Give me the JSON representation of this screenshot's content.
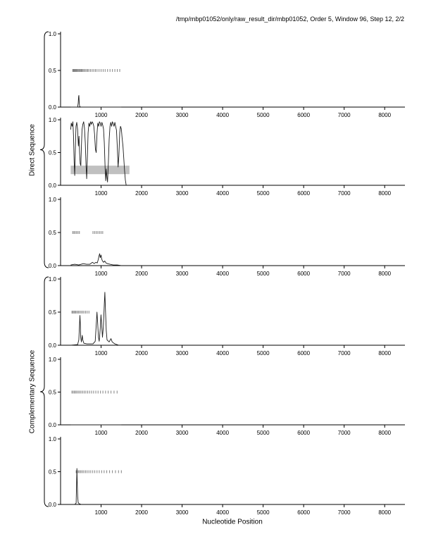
{
  "title": "/tmp/mbp01052/only/raw_result_dir/mbp01052, Order 5, Window 96, Step 12, 2/2",
  "xlabel": "Nucleotide Position",
  "group_labels": {
    "top": "Direct Sequence",
    "bottom": "Complementary Sequence"
  },
  "axis": {
    "x_min": 0,
    "x_max": 8500,
    "x_ticks": [
      1000,
      2000,
      3000,
      4000,
      5000,
      6000,
      7000,
      8000
    ],
    "y_ticks": [
      {
        "value": 0,
        "label": "0.0"
      },
      {
        "value": 0.5,
        "label": "0.5"
      },
      {
        "value": 1,
        "label": "1.0"
      }
    ]
  },
  "colors": {
    "line": "#1a1a1a",
    "marker": "#808080",
    "band": "#c0c0c0",
    "axis": "#000000"
  },
  "chart_data": [
    {
      "id": "direct-1",
      "group": "Direct Sequence",
      "type": "line",
      "ylim": [
        0,
        1
      ],
      "series": [
        [
          250,
          0.0
        ],
        [
          420,
          0.0
        ],
        [
          435,
          0.05
        ],
        [
          445,
          0.14
        ],
        [
          452,
          0.16
        ],
        [
          460,
          0.06
        ],
        [
          470,
          0.01
        ],
        [
          500,
          0.0
        ],
        [
          1500,
          0.0
        ]
      ],
      "marker_y": 0.5,
      "marker_x": [
        300,
        315,
        330,
        345,
        360,
        375,
        390,
        410,
        430,
        450,
        470,
        490,
        510,
        530,
        555,
        580,
        610,
        640,
        670,
        700,
        740,
        780,
        820,
        860,
        900,
        950,
        1000,
        1050,
        1100,
        1160,
        1220,
        1280,
        1340,
        1400,
        1460
      ],
      "band": null
    },
    {
      "id": "direct-2",
      "group": "Direct Sequence",
      "type": "line",
      "ylim": [
        0,
        1
      ],
      "series": [
        [
          250,
          0.85
        ],
        [
          265,
          0.95
        ],
        [
          285,
          0.9
        ],
        [
          305,
          0.97
        ],
        [
          320,
          0.75
        ],
        [
          335,
          0.35
        ],
        [
          350,
          0.15
        ],
        [
          365,
          0.55
        ],
        [
          380,
          0.9
        ],
        [
          400,
          0.96
        ],
        [
          420,
          0.85
        ],
        [
          440,
          0.6
        ],
        [
          455,
          0.75
        ],
        [
          470,
          0.5
        ],
        [
          485,
          0.33
        ],
        [
          500,
          0.3
        ],
        [
          515,
          0.6
        ],
        [
          530,
          0.85
        ],
        [
          550,
          0.93
        ],
        [
          570,
          0.97
        ],
        [
          590,
          0.88
        ],
        [
          610,
          0.65
        ],
        [
          630,
          0.3
        ],
        [
          645,
          0.1
        ],
        [
          660,
          0.4
        ],
        [
          680,
          0.8
        ],
        [
          700,
          0.95
        ],
        [
          720,
          0.9
        ],
        [
          740,
          0.97
        ],
        [
          760,
          0.93
        ],
        [
          780,
          0.97
        ],
        [
          800,
          0.95
        ],
        [
          820,
          0.9
        ],
        [
          840,
          0.78
        ],
        [
          860,
          0.55
        ],
        [
          880,
          0.5
        ],
        [
          900,
          0.8
        ],
        [
          920,
          0.95
        ],
        [
          940,
          0.9
        ],
        [
          960,
          0.97
        ],
        [
          980,
          0.95
        ],
        [
          1000,
          0.9
        ],
        [
          1020,
          0.96
        ],
        [
          1040,
          0.92
        ],
        [
          1060,
          0.86
        ],
        [
          1080,
          0.65
        ],
        [
          1100,
          0.25
        ],
        [
          1115,
          0.07
        ],
        [
          1130,
          0.25
        ],
        [
          1145,
          0.12
        ],
        [
          1160,
          0.05
        ],
        [
          1180,
          0.35
        ],
        [
          1200,
          0.7
        ],
        [
          1220,
          0.9
        ],
        [
          1240,
          0.96
        ],
        [
          1260,
          0.9
        ],
        [
          1280,
          0.97
        ],
        [
          1300,
          0.94
        ],
        [
          1320,
          0.9
        ],
        [
          1340,
          0.96
        ],
        [
          1360,
          0.9
        ],
        [
          1380,
          0.84
        ],
        [
          1400,
          0.6
        ],
        [
          1420,
          0.28
        ],
        [
          1440,
          0.45
        ],
        [
          1460,
          0.8
        ],
        [
          1480,
          0.9
        ],
        [
          1500,
          0.86
        ],
        [
          1520,
          0.72
        ],
        [
          1540,
          0.6
        ],
        [
          1560,
          0.42
        ],
        [
          1580,
          0.22
        ],
        [
          1600,
          0.08
        ],
        [
          1620,
          0.0
        ]
      ],
      "marker_y": null,
      "marker_x": [],
      "band": {
        "x0": 250,
        "x1": 1700,
        "y0": 0.17,
        "y1": 0.3
      }
    },
    {
      "id": "direct-3",
      "group": "Direct Sequence",
      "type": "line",
      "ylim": [
        0,
        1
      ],
      "series": [
        [
          250,
          0.01
        ],
        [
          350,
          0.02
        ],
        [
          450,
          0.01
        ],
        [
          560,
          0.03
        ],
        [
          640,
          0.02
        ],
        [
          720,
          0.02
        ],
        [
          790,
          0.05
        ],
        [
          830,
          0.03
        ],
        [
          870,
          0.05
        ],
        [
          905,
          0.04
        ],
        [
          930,
          0.09
        ],
        [
          950,
          0.15
        ],
        [
          965,
          0.18
        ],
        [
          980,
          0.12
        ],
        [
          1000,
          0.16
        ],
        [
          1015,
          0.1
        ],
        [
          1035,
          0.07
        ],
        [
          1060,
          0.05
        ],
        [
          1090,
          0.07
        ],
        [
          1120,
          0.04
        ],
        [
          1160,
          0.03
        ],
        [
          1220,
          0.02
        ],
        [
          1300,
          0.01
        ],
        [
          1400,
          0.01
        ],
        [
          1500,
          0.0
        ]
      ],
      "marker_y": 0.5,
      "marker_x": [
        300,
        330,
        360,
        395,
        430,
        465,
        800,
        840,
        880,
        920,
        960,
        1000,
        1040
      ],
      "band": null
    },
    {
      "id": "complementary-1",
      "group": "Complementary Sequence",
      "type": "line",
      "ylim": [
        0,
        1
      ],
      "series": [
        [
          250,
          0.0
        ],
        [
          420,
          0.01
        ],
        [
          450,
          0.08
        ],
        [
          468,
          0.3
        ],
        [
          478,
          0.45
        ],
        [
          488,
          0.32
        ],
        [
          498,
          0.12
        ],
        [
          515,
          0.05
        ],
        [
          535,
          0.15
        ],
        [
          550,
          0.08
        ],
        [
          575,
          0.03
        ],
        [
          650,
          0.02
        ],
        [
          800,
          0.02
        ],
        [
          855,
          0.06
        ],
        [
          880,
          0.3
        ],
        [
          898,
          0.5
        ],
        [
          915,
          0.35
        ],
        [
          935,
          0.12
        ],
        [
          955,
          0.06
        ],
        [
          978,
          0.25
        ],
        [
          998,
          0.46
        ],
        [
          1015,
          0.3
        ],
        [
          1035,
          0.12
        ],
        [
          1058,
          0.3
        ],
        [
          1080,
          0.62
        ],
        [
          1093,
          0.8
        ],
        [
          1108,
          0.55
        ],
        [
          1128,
          0.22
        ],
        [
          1148,
          0.08
        ],
        [
          1200,
          0.05
        ],
        [
          1245,
          0.1
        ],
        [
          1275,
          0.05
        ],
        [
          1340,
          0.02
        ],
        [
          1440,
          0.0
        ]
      ],
      "marker_y": 0.5,
      "marker_x": [
        280,
        305,
        330,
        355,
        380,
        410,
        440,
        470,
        505,
        540,
        575,
        615,
        655,
        700
      ],
      "band": null
    },
    {
      "id": "complementary-2",
      "group": "Complementary Sequence",
      "type": "line",
      "ylim": [
        0,
        1
      ],
      "series": [
        [
          250,
          0.0
        ],
        [
          1500,
          0.0
        ]
      ],
      "marker_y": 0.5,
      "marker_x": [
        280,
        310,
        340,
        370,
        400,
        435,
        470,
        505,
        545,
        585,
        625,
        670,
        715,
        765,
        815,
        870,
        925,
        985,
        1045,
        1110,
        1175,
        1245,
        1320,
        1395
      ],
      "band": null
    },
    {
      "id": "complementary-3",
      "group": "Complementary Sequence",
      "type": "line",
      "ylim": [
        0,
        1
      ],
      "series": [
        [
          350,
          0.0
        ],
        [
          385,
          0.02
        ],
        [
          395,
          0.3
        ],
        [
          403,
          0.55
        ],
        [
          412,
          0.32
        ],
        [
          422,
          0.12
        ],
        [
          435,
          0.03
        ],
        [
          460,
          0.01
        ],
        [
          520,
          0.0
        ]
      ],
      "marker_y": 0.5,
      "marker_x": [
        385,
        415,
        445,
        475,
        505,
        540,
        575,
        615,
        655,
        700,
        745,
        795,
        845,
        900,
        955,
        1015,
        1075,
        1140,
        1210,
        1280,
        1355,
        1430,
        1500
      ],
      "band": null
    }
  ]
}
